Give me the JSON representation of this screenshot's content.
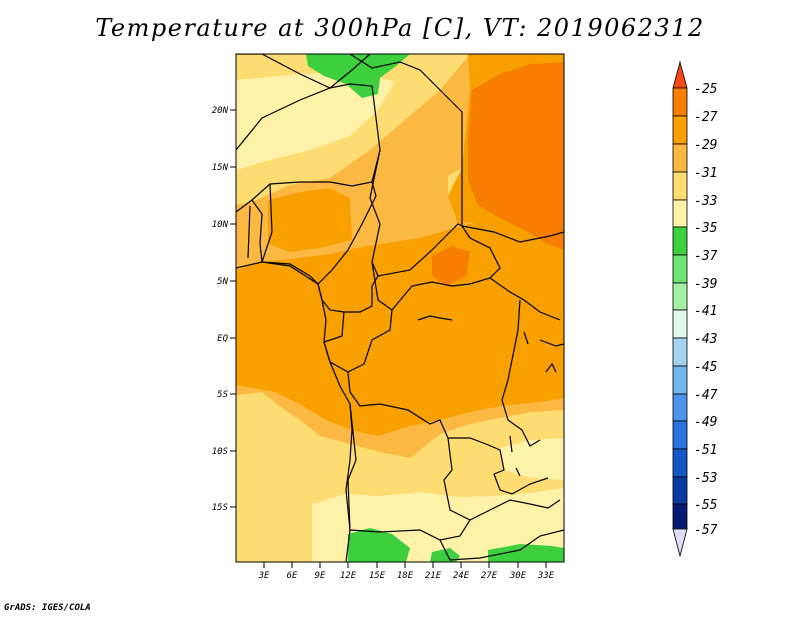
{
  "title": "Temperature at 300hPa [C], VT: 2019062312",
  "credit": "GrADS: IGES/COLA",
  "colors": {
    "c25": "#f54a18",
    "c27": "#f77e00",
    "c29": "#f7a000",
    "c31": "#fbb944",
    "c33": "#fddc72",
    "c35": "#fef2a8",
    "c37": "#3dcf3d",
    "c39": "#6fe373",
    "c41": "#a6f0a6",
    "c43": "#e2faf0",
    "c45": "#a6d4f5",
    "c47": "#75b6f0",
    "c49": "#4994ea",
    "c51": "#2a74dc",
    "c53": "#1656c4",
    "c55": "#0a3aa0",
    "c57": "#071a72",
    "c_low": "#dcdcf6",
    "border": "#000000"
  },
  "map": {
    "lat_labels": [
      "20N",
      "15N",
      "10N",
      "5N",
      "EQ",
      "5S",
      "10S",
      "15S"
    ],
    "lon_labels": [
      "3E",
      "6E",
      "9E",
      "12E",
      "15E",
      "18E",
      "21E",
      "24E",
      "27E",
      "30E",
      "33E"
    ]
  },
  "colorbar": {
    "labels": [
      "-25",
      "-27",
      "-29",
      "-31",
      "-33",
      "-35",
      "-37",
      "-39",
      "-41",
      "-43",
      "-45",
      "-47",
      "-49",
      "-51",
      "-53",
      "-55",
      "-57"
    ]
  }
}
